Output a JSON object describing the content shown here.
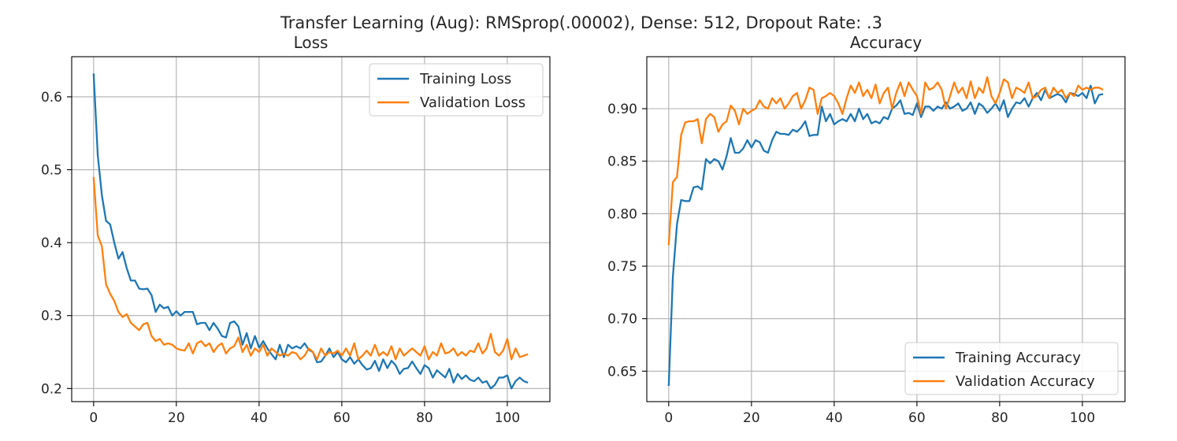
{
  "figure": {
    "suptitle": "Transfer Learning (Aug): RMSprop(.00002), Dense: 512, Dropout Rate: .3"
  },
  "chart_data": [
    {
      "type": "line",
      "title": "Loss",
      "xlabel": "",
      "ylabel": "",
      "xlim": [
        -5.3,
        110.3
      ],
      "ylim": [
        0.182,
        0.655
      ],
      "xticks": [
        0,
        20,
        40,
        60,
        80,
        100
      ],
      "yticks": [
        0.2,
        0.3,
        0.4,
        0.5,
        0.6
      ],
      "ytick_labels": [
        "0.2",
        "0.3",
        "0.4",
        "0.5",
        "0.6"
      ],
      "grid": true,
      "legend_position": "top-right",
      "series": [
        {
          "name": "Training Loss",
          "color": "#1f77b4",
          "values": [
            0.632,
            0.52,
            0.465,
            0.43,
            0.425,
            0.4,
            0.378,
            0.387,
            0.365,
            0.348,
            0.348,
            0.337,
            0.336,
            0.337,
            0.328,
            0.305,
            0.315,
            0.31,
            0.312,
            0.3,
            0.306,
            0.3,
            0.305,
            0.305,
            0.305,
            0.288,
            0.29,
            0.29,
            0.28,
            0.29,
            0.282,
            0.272,
            0.27,
            0.29,
            0.292,
            0.285,
            0.26,
            0.276,
            0.255,
            0.272,
            0.256,
            0.265,
            0.255,
            0.247,
            0.24,
            0.26,
            0.243,
            0.26,
            0.255,
            0.258,
            0.255,
            0.262,
            0.253,
            0.25,
            0.236,
            0.237,
            0.245,
            0.255,
            0.243,
            0.25,
            0.24,
            0.236,
            0.243,
            0.234,
            0.24,
            0.232,
            0.226,
            0.228,
            0.238,
            0.224,
            0.24,
            0.228,
            0.238,
            0.232,
            0.22,
            0.227,
            0.228,
            0.237,
            0.228,
            0.22,
            0.232,
            0.228,
            0.215,
            0.225,
            0.22,
            0.215,
            0.227,
            0.208,
            0.22,
            0.213,
            0.218,
            0.212,
            0.21,
            0.215,
            0.208,
            0.21,
            0.2,
            0.205,
            0.215,
            0.215,
            0.218,
            0.2,
            0.21,
            0.215,
            0.21,
            0.208
          ]
        },
        {
          "name": "Validation Loss",
          "color": "#ff7f0e",
          "values": [
            0.49,
            0.41,
            0.395,
            0.343,
            0.33,
            0.32,
            0.305,
            0.298,
            0.302,
            0.29,
            0.285,
            0.28,
            0.288,
            0.29,
            0.272,
            0.265,
            0.268,
            0.26,
            0.262,
            0.26,
            0.255,
            0.253,
            0.252,
            0.262,
            0.248,
            0.262,
            0.265,
            0.258,
            0.262,
            0.25,
            0.258,
            0.262,
            0.248,
            0.255,
            0.258,
            0.27,
            0.25,
            0.26,
            0.245,
            0.255,
            0.25,
            0.26,
            0.245,
            0.255,
            0.25,
            0.245,
            0.248,
            0.245,
            0.25,
            0.248,
            0.24,
            0.245,
            0.255,
            0.25,
            0.24,
            0.255,
            0.245,
            0.25,
            0.248,
            0.252,
            0.245,
            0.255,
            0.245,
            0.262,
            0.24,
            0.245,
            0.252,
            0.245,
            0.26,
            0.245,
            0.25,
            0.245,
            0.258,
            0.24,
            0.255,
            0.245,
            0.25,
            0.255,
            0.25,
            0.245,
            0.258,
            0.24,
            0.25,
            0.245,
            0.262,
            0.248,
            0.25,
            0.255,
            0.245,
            0.25,
            0.245,
            0.252,
            0.25,
            0.262,
            0.248,
            0.255,
            0.275,
            0.25,
            0.245,
            0.252,
            0.268,
            0.24,
            0.255,
            0.243,
            0.245,
            0.247
          ]
        }
      ]
    },
    {
      "type": "line",
      "title": "Accuracy",
      "xlabel": "",
      "ylabel": "",
      "xlim": [
        -5.3,
        110.3
      ],
      "ylim": [
        0.621,
        0.9495
      ],
      "xticks": [
        0,
        20,
        40,
        60,
        80,
        100
      ],
      "yticks": [
        0.65,
        0.7,
        0.75,
        0.8,
        0.85,
        0.9
      ],
      "ytick_labels": [
        "0.65",
        "0.70",
        "0.75",
        "0.80",
        "0.85",
        "0.90"
      ],
      "grid": true,
      "legend_position": "bottom-right",
      "series": [
        {
          "name": "Training Accuracy",
          "color": "#1f77b4",
          "values": [
            0.636,
            0.74,
            0.79,
            0.813,
            0.812,
            0.812,
            0.825,
            0.826,
            0.823,
            0.852,
            0.848,
            0.852,
            0.85,
            0.842,
            0.855,
            0.872,
            0.858,
            0.858,
            0.862,
            0.87,
            0.863,
            0.87,
            0.868,
            0.86,
            0.858,
            0.87,
            0.878,
            0.876,
            0.876,
            0.875,
            0.88,
            0.878,
            0.882,
            0.888,
            0.874,
            0.875,
            0.875,
            0.902,
            0.888,
            0.895,
            0.885,
            0.888,
            0.89,
            0.888,
            0.895,
            0.888,
            0.9,
            0.89,
            0.895,
            0.886,
            0.888,
            0.886,
            0.892,
            0.89,
            0.9,
            0.903,
            0.908,
            0.895,
            0.896,
            0.894,
            0.905,
            0.892,
            0.902,
            0.902,
            0.898,
            0.902,
            0.9,
            0.906,
            0.9,
            0.902,
            0.905,
            0.898,
            0.9,
            0.906,
            0.895,
            0.905,
            0.902,
            0.896,
            0.9,
            0.905,
            0.898,
            0.908,
            0.892,
            0.9,
            0.906,
            0.905,
            0.91,
            0.902,
            0.91,
            0.915,
            0.908,
            0.918,
            0.91,
            0.912,
            0.914,
            0.912,
            0.906,
            0.915,
            0.914,
            0.912,
            0.915,
            0.91,
            0.922,
            0.905,
            0.913,
            0.914
          ]
        },
        {
          "name": "Validation Accuracy",
          "color": "#ff7f0e",
          "values": [
            0.77,
            0.83,
            0.835,
            0.875,
            0.887,
            0.888,
            0.888,
            0.89,
            0.867,
            0.89,
            0.895,
            0.892,
            0.878,
            0.885,
            0.888,
            0.903,
            0.898,
            0.885,
            0.9,
            0.895,
            0.898,
            0.9,
            0.908,
            0.902,
            0.9,
            0.91,
            0.905,
            0.91,
            0.9,
            0.905,
            0.912,
            0.915,
            0.9,
            0.908,
            0.92,
            0.918,
            0.895,
            0.91,
            0.912,
            0.915,
            0.912,
            0.905,
            0.895,
            0.91,
            0.922,
            0.915,
            0.925,
            0.912,
            0.918,
            0.91,
            0.923,
            0.905,
            0.915,
            0.92,
            0.9,
            0.915,
            0.925,
            0.912,
            0.925,
            0.918,
            0.912,
            0.895,
            0.925,
            0.918,
            0.92,
            0.925,
            0.918,
            0.9,
            0.912,
            0.925,
            0.915,
            0.92,
            0.91,
            0.926,
            0.91,
            0.92,
            0.915,
            0.93,
            0.912,
            0.905,
            0.915,
            0.928,
            0.925,
            0.91,
            0.92,
            0.918,
            0.915,
            0.925,
            0.91,
            0.912,
            0.918,
            0.92,
            0.91,
            0.92,
            0.915,
            0.918,
            0.91,
            0.915,
            0.912,
            0.922,
            0.918,
            0.92,
            0.918,
            0.92,
            0.92,
            0.918
          ]
        }
      ]
    }
  ]
}
